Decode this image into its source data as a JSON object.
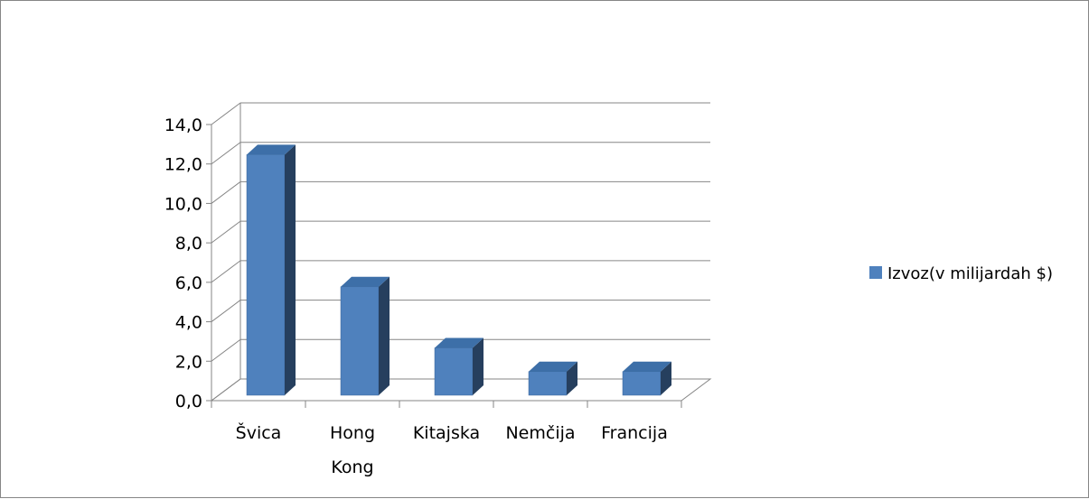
{
  "chart_data": {
    "type": "bar",
    "three_d": true,
    "categories": [
      "Švica",
      "Hong Kong",
      "Kitajska",
      "Nemčija",
      "Francija"
    ],
    "category_lines": [
      [
        "Švica"
      ],
      [
        "Hong",
        "Kong"
      ],
      [
        "Kitajska"
      ],
      [
        "Nemčija"
      ],
      [
        "Francija"
      ]
    ],
    "series": [
      {
        "name": "Izvoz(v milijardah $)",
        "values": [
          12.2,
          5.5,
          2.4,
          1.2,
          1.2
        ],
        "color": "#4f81bd"
      }
    ],
    "ylim": [
      0,
      14
    ],
    "yticks": [
      "0,0",
      "2,0",
      "4,0",
      "6,0",
      "8,0",
      "10,0",
      "12,0",
      "14,0"
    ],
    "grid": true,
    "legend_position": "right"
  }
}
